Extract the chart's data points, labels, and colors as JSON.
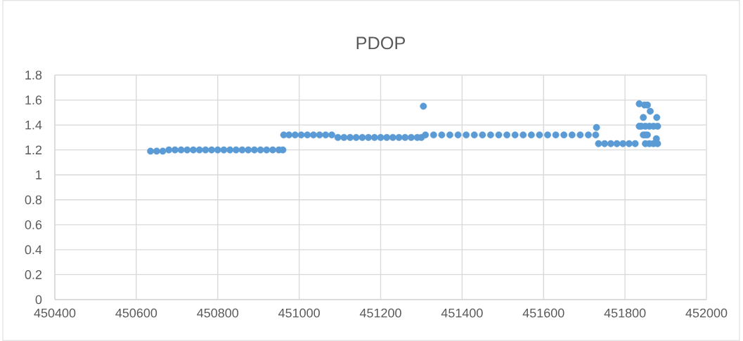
{
  "chart_data": {
    "type": "scatter",
    "title": "PDOP",
    "x": [
      450635,
      450650,
      450665,
      450680,
      450695,
      450710,
      450725,
      450740,
      450755,
      450770,
      450785,
      450800,
      450815,
      450830,
      450845,
      450860,
      450875,
      450890,
      450905,
      450920,
      450935,
      450950,
      450960,
      450962,
      450975,
      450990,
      451005,
      451020,
      451035,
      451050,
      451065,
      451080,
      451095,
      451110,
      451125,
      451140,
      451155,
      451170,
      451185,
      451200,
      451215,
      451230,
      451245,
      451260,
      451275,
      451290,
      451300,
      451305,
      451310,
      451330,
      451350,
      451370,
      451390,
      451410,
      451430,
      451450,
      451470,
      451490,
      451510,
      451530,
      451550,
      451570,
      451590,
      451610,
      451630,
      451650,
      451670,
      451690,
      451710,
      451728,
      451730,
      451735,
      451750,
      451765,
      451780,
      451795,
      451810,
      451825,
      451835,
      451835,
      451845,
      451848,
      451855,
      451862,
      451878,
      451840,
      451850,
      451860,
      451870,
      451880,
      451845,
      451850,
      451855,
      451850,
      451860,
      451870,
      451880,
      451877
    ],
    "series": [
      {
        "color": "#5b9bd5",
        "values": [
          1.19,
          1.19,
          1.19,
          1.2,
          1.2,
          1.2,
          1.2,
          1.2,
          1.2,
          1.2,
          1.2,
          1.2,
          1.2,
          1.2,
          1.2,
          1.2,
          1.2,
          1.2,
          1.2,
          1.2,
          1.2,
          1.2,
          1.2,
          1.32,
          1.32,
          1.32,
          1.32,
          1.32,
          1.32,
          1.32,
          1.32,
          1.32,
          1.3,
          1.3,
          1.3,
          1.3,
          1.3,
          1.3,
          1.3,
          1.3,
          1.3,
          1.3,
          1.3,
          1.3,
          1.3,
          1.3,
          1.3,
          1.55,
          1.32,
          1.32,
          1.32,
          1.32,
          1.32,
          1.32,
          1.32,
          1.32,
          1.32,
          1.32,
          1.32,
          1.32,
          1.32,
          1.32,
          1.32,
          1.32,
          1.32,
          1.32,
          1.32,
          1.32,
          1.32,
          1.32,
          1.38,
          1.25,
          1.25,
          1.25,
          1.25,
          1.25,
          1.25,
          1.25,
          1.39,
          1.57,
          1.46,
          1.56,
          1.56,
          1.51,
          1.46,
          1.39,
          1.39,
          1.39,
          1.39,
          1.39,
          1.32,
          1.32,
          1.32,
          1.25,
          1.25,
          1.25,
          1.25,
          1.29
        ]
      }
    ],
    "xlim": [
      450400,
      452000
    ],
    "xticks": [
      450400,
      450600,
      450800,
      451000,
      451200,
      451400,
      451600,
      451800,
      452000
    ],
    "ylim": [
      0,
      1.8
    ],
    "yticks": [
      0,
      0.2,
      0.4,
      0.6,
      0.8,
      1,
      1.2,
      1.4,
      1.6,
      1.8
    ],
    "grid": true,
    "marker": "circle"
  }
}
